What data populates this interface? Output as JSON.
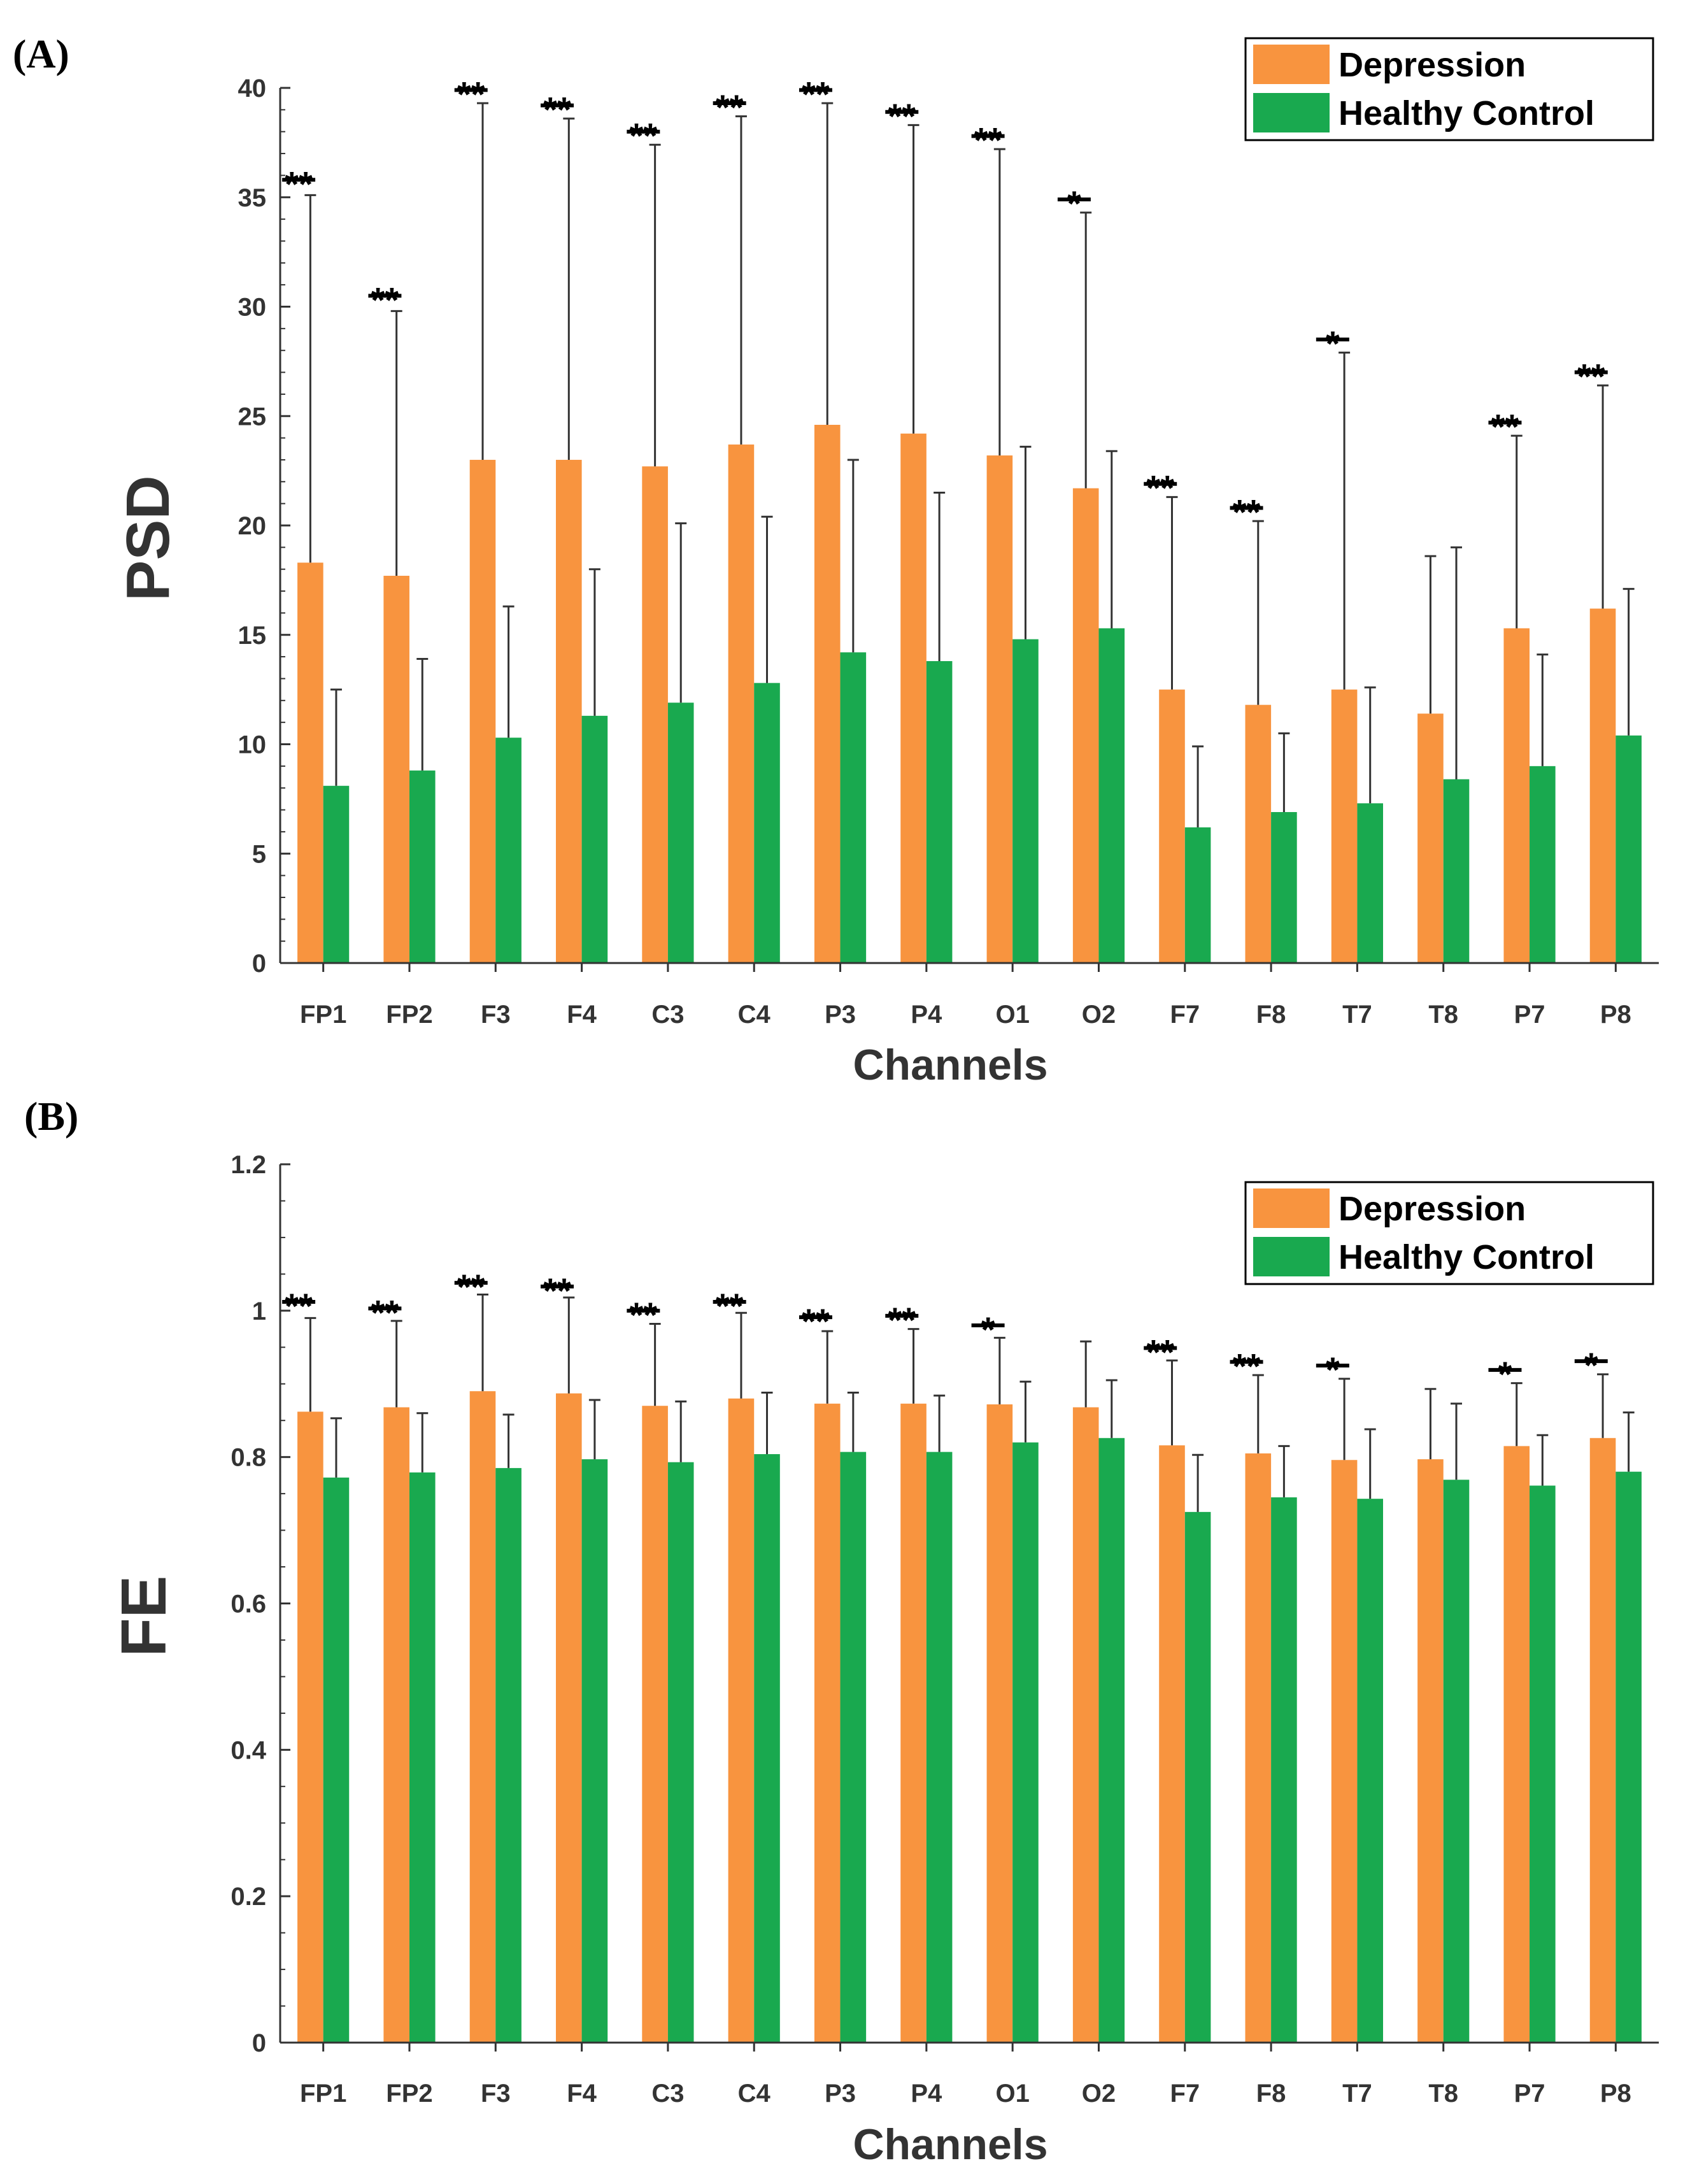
{
  "colors": {
    "depression": "#f8943f",
    "control": "#19a94f",
    "axis": "#333333",
    "error_bar": "#333333"
  },
  "chart_data": [
    {
      "panel_label": "(A)",
      "type": "bar",
      "xlabel": "Channels",
      "ylabel": "PSD",
      "ylim": [
        0,
        40
      ],
      "yticks": [
        0,
        5,
        10,
        15,
        20,
        25,
        30,
        35,
        40
      ],
      "ytick_labels": [
        "0",
        "5",
        "10",
        "15",
        "20",
        "25",
        "30",
        "35",
        "40"
      ],
      "legend_position": "top-right",
      "categories": [
        "FP1",
        "FP2",
        "F3",
        "F4",
        "C3",
        "C4",
        "P3",
        "P4",
        "O1",
        "O2",
        "F7",
        "F8",
        "T7",
        "T8",
        "P7",
        "P8"
      ],
      "series": [
        {
          "name": "Depression",
          "values": [
            18.3,
            17.7,
            23.0,
            23.0,
            22.7,
            23.7,
            24.6,
            24.2,
            23.2,
            21.7,
            12.5,
            11.8,
            12.5,
            11.4,
            15.3,
            16.2
          ],
          "error_upper": [
            35.1,
            29.8,
            39.3,
            38.6,
            37.4,
            38.7,
            39.3,
            38.3,
            37.2,
            34.3,
            21.3,
            20.2,
            27.9,
            18.6,
            24.1,
            26.4
          ]
        },
        {
          "name": "Healthy Control",
          "values": [
            8.1,
            8.8,
            10.3,
            11.3,
            11.9,
            12.8,
            14.2,
            13.8,
            14.8,
            15.3,
            6.2,
            6.9,
            7.3,
            8.4,
            9.0,
            10.4
          ],
          "error_upper": [
            12.5,
            13.9,
            16.3,
            18.0,
            20.1,
            20.4,
            23.0,
            21.5,
            23.6,
            23.4,
            9.9,
            10.5,
            12.6,
            19.0,
            14.1,
            17.1
          ]
        }
      ],
      "significance": [
        "**",
        "**",
        "**",
        "**",
        "**",
        "**",
        "**",
        "**",
        "**",
        "*",
        "**",
        "**",
        "*",
        "",
        "**",
        "**"
      ],
      "significance_level": [
        35.8,
        30.5,
        39.9,
        39.2,
        38.0,
        39.3,
        39.9,
        38.9,
        37.8,
        34.9,
        21.9,
        20.8,
        28.5,
        0,
        24.7,
        27.0
      ]
    },
    {
      "panel_label": "(B)",
      "type": "bar",
      "xlabel": "Channels",
      "ylabel": "FE",
      "ylim": [
        0,
        1.2
      ],
      "yticks": [
        0,
        0.2,
        0.4,
        0.6,
        0.8,
        1.0,
        1.2
      ],
      "ytick_labels": [
        "0",
        "0.2",
        "0.4",
        "0.6",
        "0.8",
        "1",
        "1.2"
      ],
      "legend_position": "top-right",
      "categories": [
        "FP1",
        "FP2",
        "F3",
        "F4",
        "C3",
        "C4",
        "P3",
        "P4",
        "O1",
        "O2",
        "F7",
        "F8",
        "T7",
        "T8",
        "P7",
        "P8"
      ],
      "series": [
        {
          "name": "Depression",
          "values": [
            0.862,
            0.868,
            0.89,
            0.887,
            0.87,
            0.88,
            0.873,
            0.873,
            0.872,
            0.868,
            0.816,
            0.805,
            0.796,
            0.797,
            0.815,
            0.826
          ],
          "error_upper": [
            0.99,
            0.986,
            1.022,
            1.018,
            0.982,
            0.997,
            0.972,
            0.975,
            0.963,
            0.958,
            0.932,
            0.912,
            0.907,
            0.893,
            0.901,
            0.913
          ]
        },
        {
          "name": "Healthy Control",
          "values": [
            0.772,
            0.779,
            0.785,
            0.797,
            0.793,
            0.804,
            0.807,
            0.807,
            0.82,
            0.826,
            0.725,
            0.745,
            0.743,
            0.769,
            0.761,
            0.78
          ],
          "error_upper": [
            0.853,
            0.86,
            0.858,
            0.878,
            0.876,
            0.888,
            0.888,
            0.884,
            0.903,
            0.905,
            0.803,
            0.815,
            0.838,
            0.873,
            0.83,
            0.861
          ]
        }
      ],
      "significance": [
        "**",
        "**",
        "**",
        "**",
        "**",
        "**",
        "**",
        "**",
        "*",
        "",
        "**",
        "**",
        "*",
        "",
        "*",
        "*"
      ],
      "significance_level": [
        1.012,
        1.003,
        1.038,
        1.033,
        1.0,
        1.012,
        0.991,
        0.993,
        0.98,
        0,
        0.949,
        0.93,
        0.925,
        0,
        0.919,
        0.931
      ]
    }
  ]
}
